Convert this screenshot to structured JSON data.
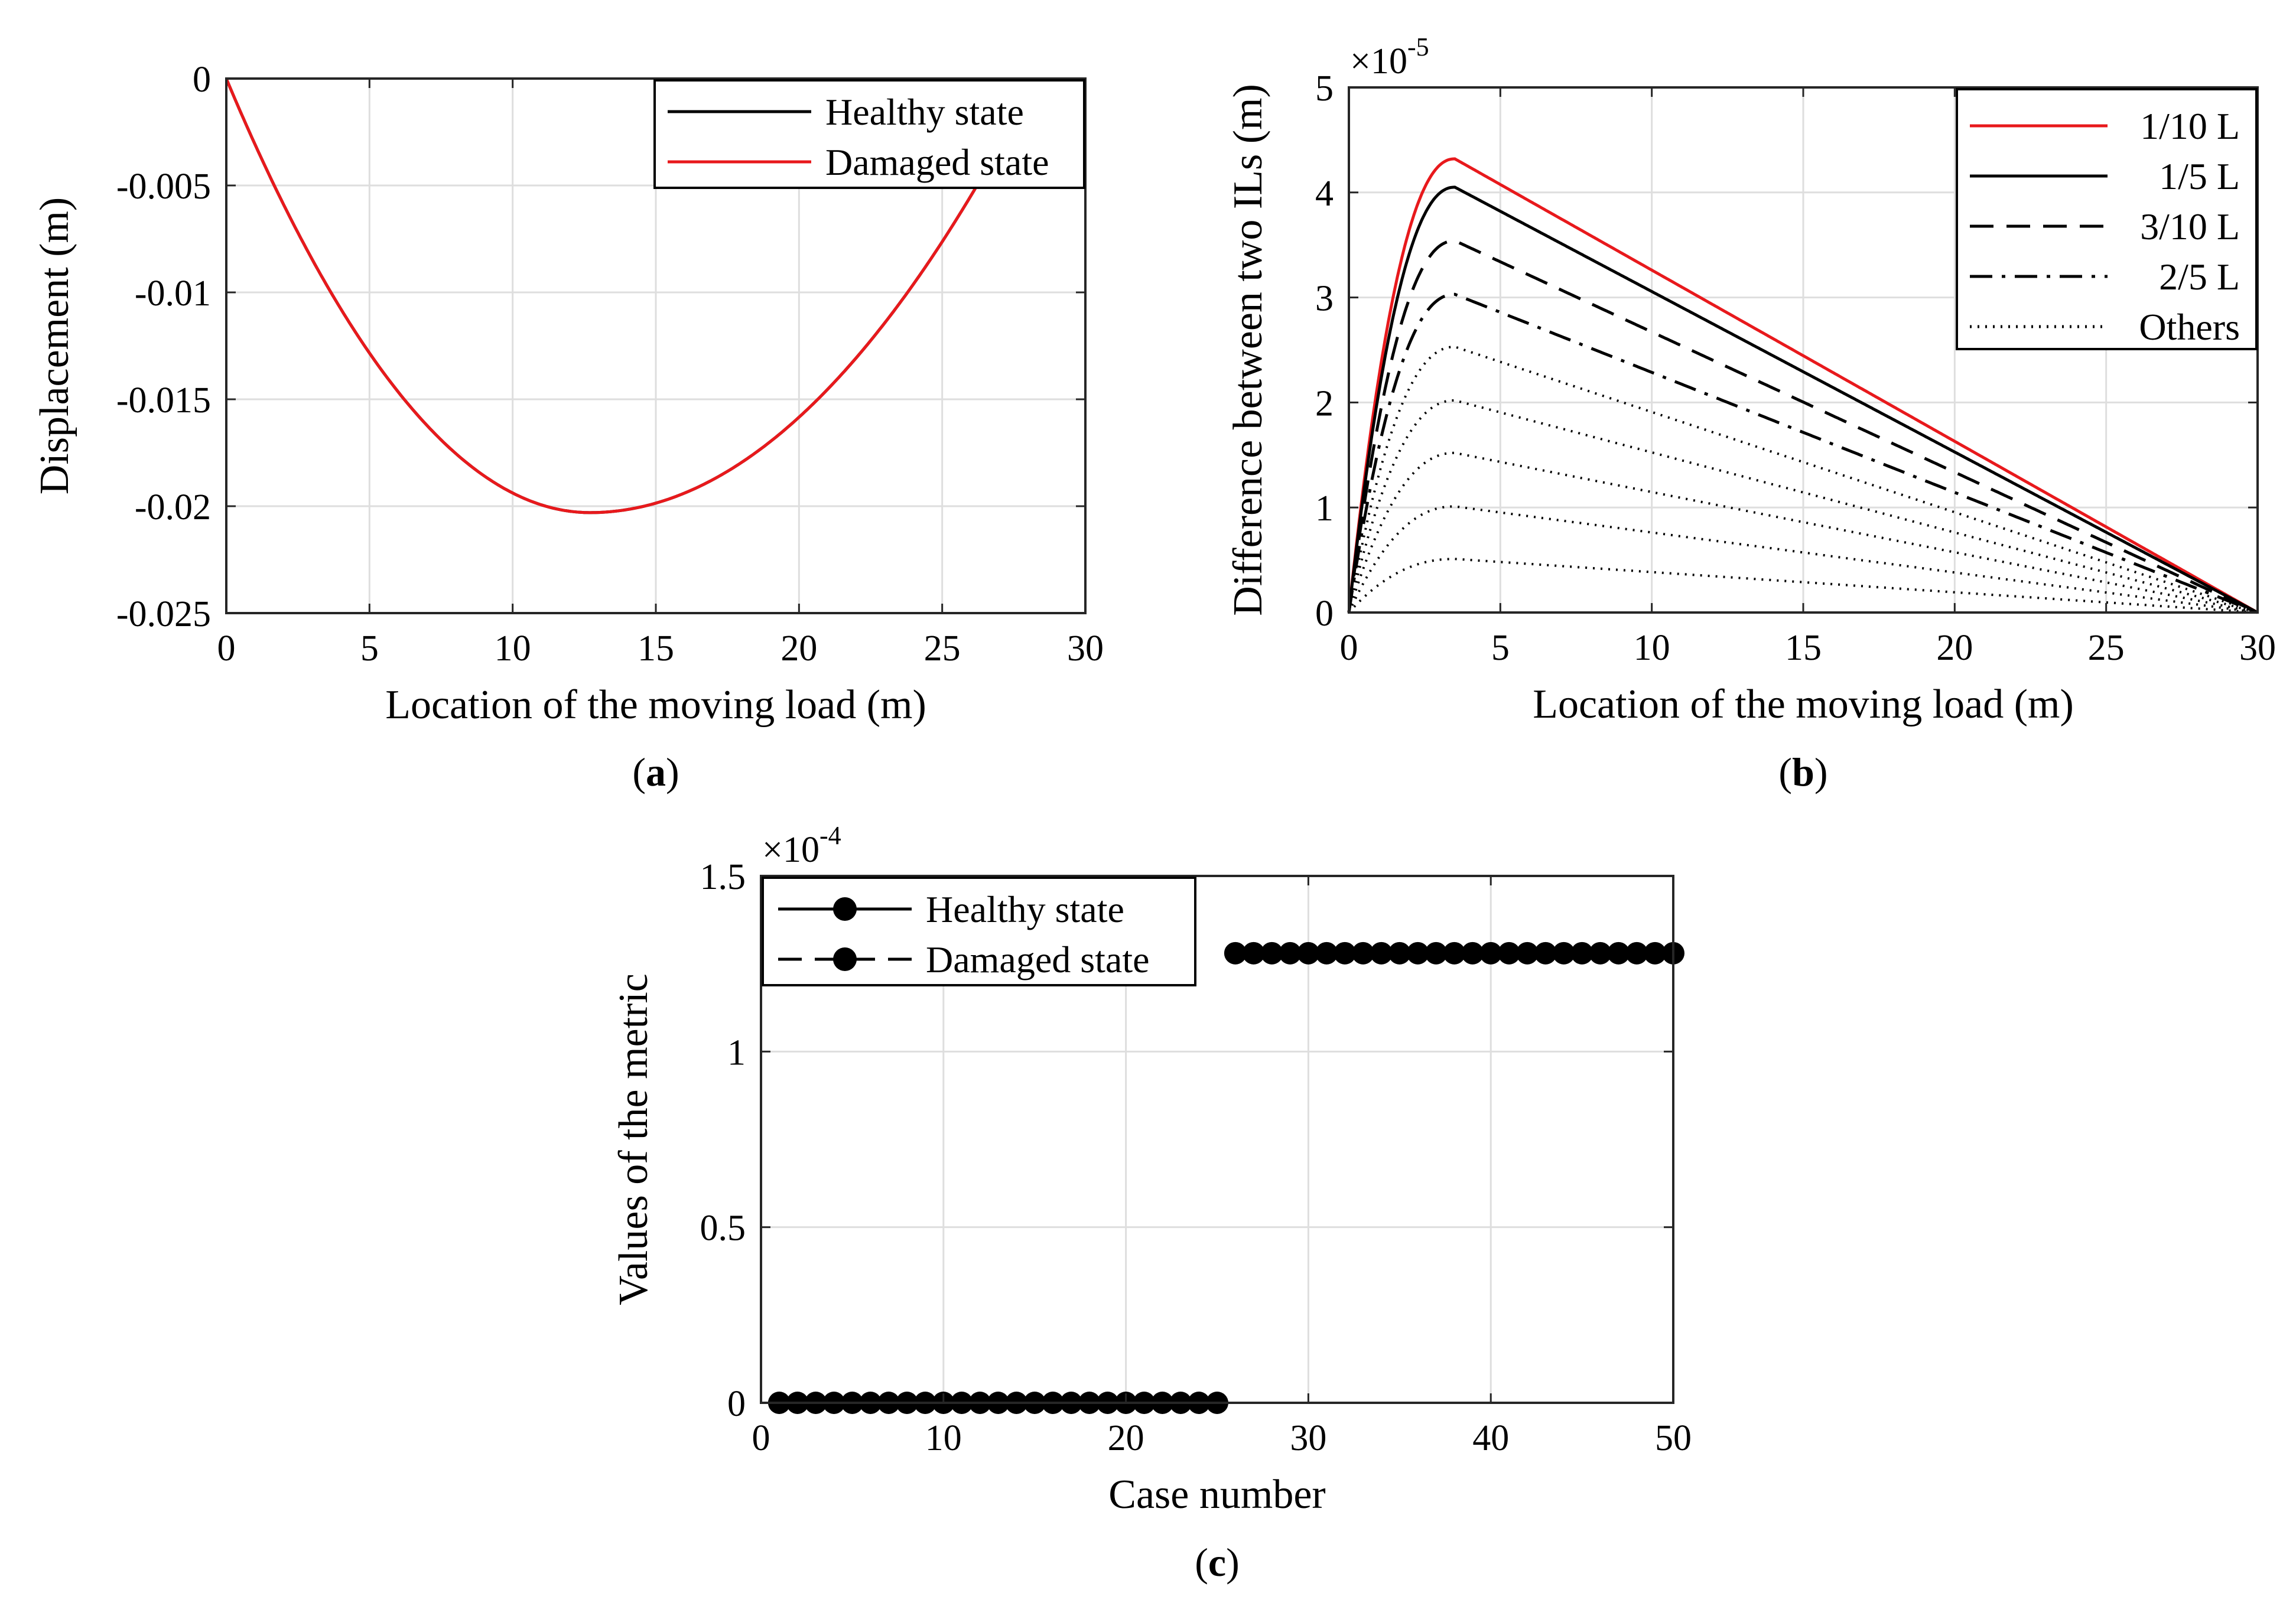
{
  "chart_data": [
    {
      "type": "line",
      "panel": "a",
      "caption": {
        "open": "(",
        "letter": "a",
        "close": ")"
      },
      "xlabel": "Location of the moving load (m)",
      "ylabel": "Displacement (m)",
      "xlim": [
        0,
        30
      ],
      "ylim": [
        -0.025,
        0
      ],
      "xticks": [
        0,
        5,
        10,
        15,
        20,
        25,
        30
      ],
      "xtick_labels": [
        "0",
        "5",
        "10",
        "15",
        "20",
        "25",
        "30"
      ],
      "yticks": [
        0,
        -0.005,
        -0.01,
        -0.015,
        -0.02,
        -0.025
      ],
      "ytick_labels": [
        "0",
        "-0.005",
        "-0.01",
        "-0.015",
        "-0.02",
        "-0.025"
      ],
      "grid": true,
      "legend_position": "top-right",
      "series": [
        {
          "name": "Healthy state",
          "color": "#000000",
          "dash": "solid",
          "min_x": 12.7,
          "min_y": -0.0203,
          "x_end": 30
        },
        {
          "name": "Damaged state",
          "color": "#e8191c",
          "dash": "solid",
          "min_x": 12.7,
          "min_y": -0.0203,
          "x_end": 30
        }
      ]
    },
    {
      "type": "line",
      "panel": "b",
      "caption": {
        "open": "(",
        "letter": "b",
        "close": ")"
      },
      "xlabel": "Location of the moving load (m)",
      "ylabel": "Difference between two ILs (m)",
      "y_multiplier_base": "×10",
      "y_multiplier_exp": "-5",
      "xlim": [
        0,
        30
      ],
      "ylim": [
        0,
        5
      ],
      "xticks": [
        0,
        5,
        10,
        15,
        20,
        25,
        30
      ],
      "xtick_labels": [
        "0",
        "5",
        "10",
        "15",
        "20",
        "25",
        "30"
      ],
      "yticks": [
        0,
        1,
        2,
        3,
        4,
        5
      ],
      "ytick_labels": [
        "0",
        "1",
        "2",
        "3",
        "4",
        "5"
      ],
      "grid": true,
      "legend_position": "top-right",
      "peak_x": 3.5,
      "end_x": 30,
      "series": [
        {
          "name": "1/10 L",
          "color": "#e8191c",
          "dash": "solid",
          "peak": 4.32
        },
        {
          "name": "1/5 L",
          "color": "#000000",
          "dash": "solid",
          "peak": 4.05
        },
        {
          "name": "3/10 L",
          "color": "#000000",
          "dash": "dashed",
          "peak": 3.54
        },
        {
          "name": "2/5 L",
          "color": "#000000",
          "dash": "dashdot",
          "peak": 3.03
        },
        {
          "name": "Others",
          "color": "#000000",
          "dash": "dotted",
          "peaks": [
            2.53,
            2.02,
            1.52,
            1.01,
            0.51
          ]
        }
      ]
    },
    {
      "type": "scatter",
      "panel": "c",
      "caption": {
        "open": "(",
        "letter": "c",
        "close": ")"
      },
      "xlabel": "Case number",
      "ylabel": "Values of the metric",
      "y_multiplier_base": "×10",
      "y_multiplier_exp": "-4",
      "xlim": [
        0,
        50
      ],
      "ylim": [
        0,
        1.5
      ],
      "xticks": [
        0,
        10,
        20,
        30,
        40,
        50
      ],
      "xtick_labels": [
        "0",
        "10",
        "20",
        "30",
        "40",
        "50"
      ],
      "yticks": [
        0,
        0.5,
        1,
        1.5
      ],
      "ytick_labels": [
        "0",
        "0.5",
        "1",
        "1.5"
      ],
      "grid": true,
      "legend_position": "top-left",
      "series": [
        {
          "name": "Healthy state",
          "color": "#000000",
          "dash": "solid",
          "x_range": [
            1,
            25
          ],
          "value": 0
        },
        {
          "name": "Damaged state",
          "color": "#000000",
          "dash": "dashed",
          "x_range": [
            26,
            50
          ],
          "value": 1.28
        }
      ]
    }
  ]
}
